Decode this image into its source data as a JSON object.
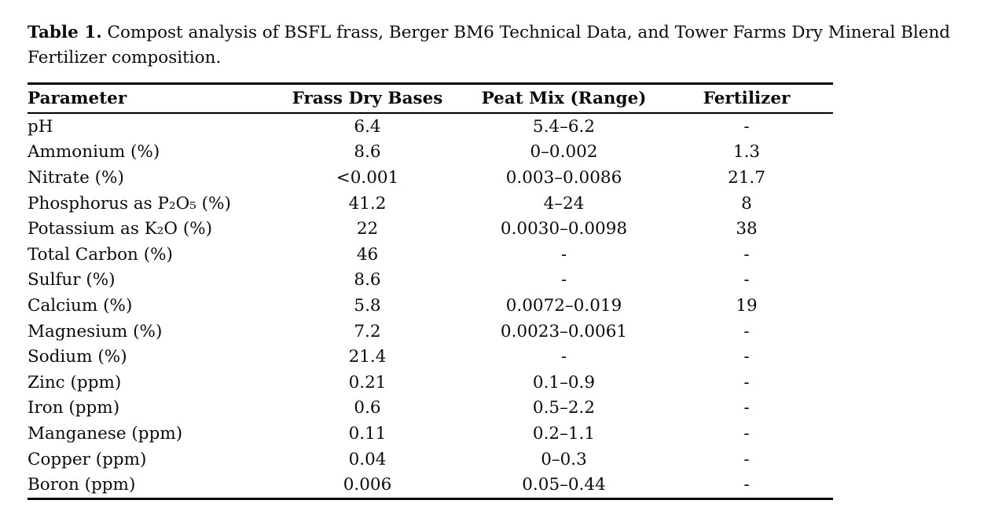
{
  "document": {
    "caption_label": "Table 1.",
    "caption_line1": "Compost analysis of BSFL frass, Berger BM6 Technical Data, and Tower Farms Dry Mineral Blend",
    "caption_line2": "Fertilizer composition."
  },
  "table": {
    "columns": [
      "Parameter",
      "Frass Dry Bases",
      "Peat Mix (Range)",
      "Fertilizer"
    ],
    "rows": [
      [
        "pH",
        "6.4",
        "5.4–6.2",
        "-"
      ],
      [
        "Ammonium (%)",
        "8.6",
        "0–0.002",
        "1.3"
      ],
      [
        "Nitrate (%)",
        "<0.001",
        "0.003–0.0086",
        "21.7"
      ],
      [
        "Phosphorus as P₂O₅ (%)",
        "41.2",
        "4–24",
        "8"
      ],
      [
        "Potassium as K₂O (%)",
        "22",
        "0.0030–0.0098",
        "38"
      ],
      [
        "Total Carbon (%)",
        "46",
        "-",
        "-"
      ],
      [
        "Sulfur (%)",
        "8.6",
        "-",
        "-"
      ],
      [
        "Calcium (%)",
        "5.8",
        "0.0072–0.019",
        "19"
      ],
      [
        "Magnesium (%)",
        "7.2",
        "0.0023–0.0061",
        "-"
      ],
      [
        "Sodium (%)",
        "21.4",
        "-",
        "-"
      ],
      [
        "Zinc (ppm)",
        "0.21",
        "0.1–0.9",
        "-"
      ],
      [
        "Iron (ppm)",
        "0.6",
        "0.5–2.2",
        "-"
      ],
      [
        "Manganese (ppm)",
        "0.11",
        "0.2–1.1",
        "-"
      ],
      [
        "Copper (ppm)",
        "0.04",
        "0–0.3",
        "-"
      ],
      [
        "Boron (ppm)",
        "0.006",
        "0.05–0.44",
        "-"
      ]
    ]
  },
  "colors": {
    "background": "#ffffff",
    "text": "#0b0b0b",
    "rule": "#000000"
  }
}
